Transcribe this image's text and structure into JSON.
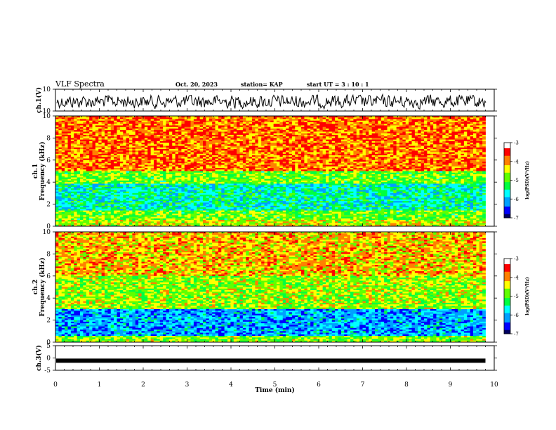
{
  "header": {
    "title": "VLF Spectra",
    "date": "Oct. 20, 2023",
    "station": "station= KAP",
    "start": "start  UT  =   3  : 10 : 1"
  },
  "chart_data": [
    {
      "type": "line",
      "name": "ch1-waveform",
      "ylabel": "ch.1(V)",
      "ylim": [
        -10,
        10
      ],
      "yticks": [
        "10",
        "-10"
      ],
      "xlim": [
        0,
        10
      ]
    },
    {
      "type": "heatmap",
      "name": "ch1-spectrogram",
      "ylabel": "ch.1\nFrequency  (kHz)",
      "ylim": [
        0,
        10
      ],
      "yticks": [
        "0",
        "2",
        "4",
        "6",
        "8",
        "10"
      ],
      "xlim": [
        0,
        9.8
      ],
      "colorbar": {
        "label": "log(PSD)(V²/Hz)",
        "range": [
          -7,
          -3
        ],
        "ticks": [
          "-3",
          "-4",
          "-5",
          "-6",
          "-7"
        ]
      },
      "bands": [
        {
          "from": 0,
          "to": 0.6,
          "level": -4.2
        },
        {
          "from": 0.6,
          "to": 1.5,
          "level": -4.6
        },
        {
          "from": 1.5,
          "to": 3.8,
          "level": -5.3
        },
        {
          "from": 3.8,
          "to": 5.0,
          "level": -4.6
        },
        {
          "from": 5.0,
          "to": 10,
          "level": -3.6
        }
      ]
    },
    {
      "type": "heatmap",
      "name": "ch2-spectrogram",
      "ylabel": "ch.2\nFrequency  (kHz)",
      "ylim": [
        0,
        10
      ],
      "yticks": [
        "0",
        "2",
        "4",
        "6",
        "8",
        "10"
      ],
      "xlim": [
        0,
        9.8
      ],
      "colorbar": {
        "label": "log(PSD)(V²/Hz)",
        "range": [
          -7,
          -3
        ],
        "ticks": [
          "-3",
          "-4",
          "-5",
          "-6",
          "-7"
        ]
      },
      "bands": [
        {
          "from": 0,
          "to": 0.6,
          "level": -4.5
        },
        {
          "from": 0.6,
          "to": 3.0,
          "level": -5.8
        },
        {
          "from": 3.0,
          "to": 6.0,
          "level": -4.4
        },
        {
          "from": 6.0,
          "to": 10,
          "level": -3.9
        }
      ]
    },
    {
      "type": "line",
      "name": "ch3-waveform",
      "ylabel": "ch.3(V)",
      "ylim": [
        -5,
        5
      ],
      "yticks": [
        "5",
        "0",
        "-5"
      ],
      "xlim": [
        0,
        10
      ],
      "xlabel": "Time  (min)",
      "xticks": [
        "0",
        "1",
        "2",
        "3",
        "4",
        "5",
        "6",
        "7",
        "8",
        "9",
        "10"
      ],
      "level": -1.1
    }
  ],
  "colors": {
    "palette": [
      "#000060",
      "#0000ff",
      "#00a0ff",
      "#00ffff",
      "#00ff40",
      "#60ff00",
      "#ffff00",
      "#ff8000",
      "#ff0000",
      "#ffffff"
    ]
  }
}
